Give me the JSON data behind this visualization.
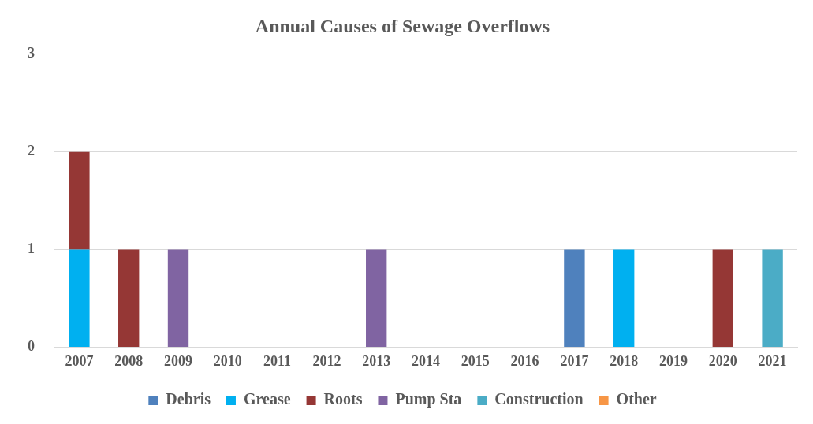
{
  "chart_data": {
    "type": "bar",
    "title": "Annual Causes of Sewage Overflows",
    "categories": [
      "2007",
      "2008",
      "2009",
      "2010",
      "2011",
      "2012",
      "2013",
      "2014",
      "2015",
      "2016",
      "2017",
      "2018",
      "2019",
      "2020",
      "2021"
    ],
    "series": [
      {
        "name": "Debris",
        "color": "#4f81bd",
        "values": [
          0,
          0,
          0,
          0,
          0,
          0,
          0,
          0,
          0,
          0,
          1,
          0,
          0,
          0,
          0
        ]
      },
      {
        "name": "Grease",
        "color": "#00b0f0",
        "values": [
          1,
          0,
          0,
          0,
          0,
          0,
          0,
          0,
          0,
          0,
          0,
          1,
          0,
          0,
          0
        ]
      },
      {
        "name": "Roots",
        "color": "#953735",
        "values": [
          1,
          1,
          0,
          0,
          0,
          0,
          0,
          0,
          0,
          0,
          0,
          0,
          0,
          1,
          0
        ]
      },
      {
        "name": "Pump Sta",
        "color": "#8064a2",
        "values": [
          0,
          0,
          1,
          0,
          0,
          0,
          1,
          0,
          0,
          0,
          0,
          0,
          0,
          0,
          0
        ]
      },
      {
        "name": "Construction",
        "color": "#4bacc6",
        "values": [
          0,
          0,
          0,
          0,
          0,
          0,
          0,
          0,
          0,
          0,
          0,
          0,
          0,
          0,
          1
        ]
      },
      {
        "name": "Other",
        "color": "#f79646",
        "values": [
          0,
          0,
          0,
          0,
          0,
          0,
          0,
          0,
          0,
          0,
          0,
          0,
          0,
          0,
          0
        ]
      }
    ],
    "stacked": true,
    "ylim": [
      0,
      3
    ],
    "yticks": [
      0,
      1,
      2,
      3
    ],
    "grid": "y",
    "legend": "bottom"
  }
}
